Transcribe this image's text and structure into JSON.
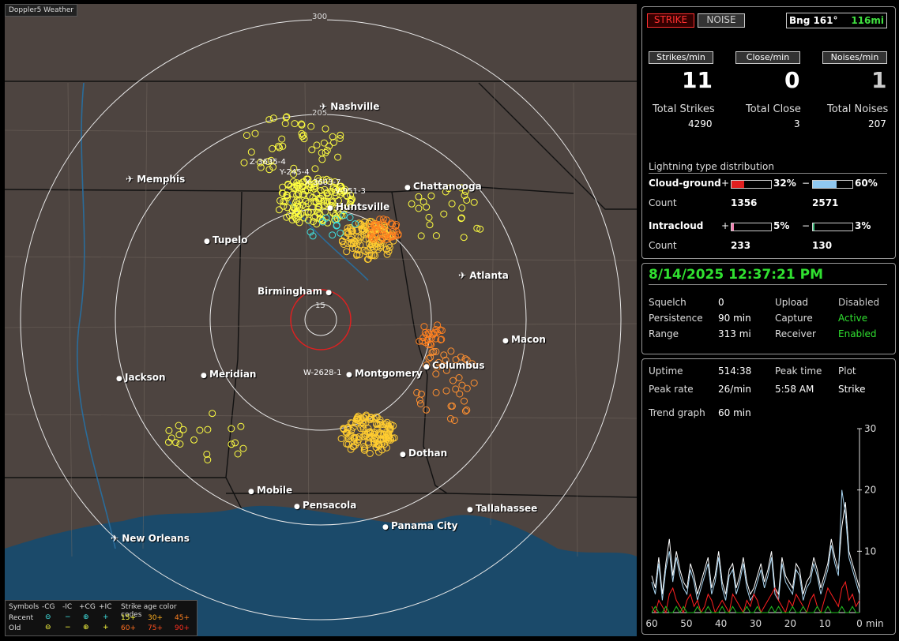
{
  "app_title": "Doppler5 Weather",
  "map": {
    "range_labels": [
      "300",
      "205",
      "15"
    ],
    "cities": [
      {
        "name": "Nashville",
        "kind": "plane"
      },
      {
        "name": "Memphis",
        "kind": "plane"
      },
      {
        "name": "Chattanooga",
        "kind": "dot"
      },
      {
        "name": "Huntsville",
        "kind": "dot"
      },
      {
        "name": "Tupelo",
        "kind": "dot"
      },
      {
        "name": "Atlanta",
        "kind": "plane"
      },
      {
        "name": "Birmingham",
        "kind": "dot"
      },
      {
        "name": "Macon",
        "kind": "dot"
      },
      {
        "name": "Jackson",
        "kind": "dot"
      },
      {
        "name": "Meridian",
        "kind": "dot"
      },
      {
        "name": "Montgomery",
        "kind": "dot"
      },
      {
        "name": "Columbus",
        "kind": "dot"
      },
      {
        "name": "Dothan",
        "kind": "dot"
      },
      {
        "name": "Mobile",
        "kind": "dot"
      },
      {
        "name": "Pensacola",
        "kind": "dot"
      },
      {
        "name": "Tallahassee",
        "kind": "dot"
      },
      {
        "name": "Panama City",
        "kind": "dot"
      },
      {
        "name": "New Orleans",
        "kind": "plane"
      }
    ],
    "storm_tags": [
      "Z-3635-4",
      "Y-245-4",
      "X-3603-7",
      "V-951-3",
      "W-2628-1"
    ],
    "legend": {
      "symbols_label": "Symbols",
      "headers": [
        "-CG",
        "-IC",
        "+CG",
        "+IC"
      ],
      "age_title": "Strike age color codes",
      "recent_label": "Recent",
      "old_label": "Old",
      "recent_ages": [
        "15+",
        "30+",
        "45+"
      ],
      "old_ages": [
        "60+",
        "75+",
        "90+"
      ]
    }
  },
  "counts_panel": {
    "strike_btn": "STRIKE",
    "noise_btn": "NOISE",
    "bearing": "Bng 161°",
    "distance": "116mi",
    "strikes_per_min_label": "Strikes/min",
    "close_per_min_label": "Close/min",
    "noises_per_min_label": "Noises/min",
    "strikes_per_min": "11",
    "close_per_min": "0",
    "noises_per_min": "1",
    "total_strikes_label": "Total Strikes",
    "total_close_label": "Total Close",
    "total_noises_label": "Total Noises",
    "total_strikes": "4290",
    "total_close": "3",
    "total_noises": "207",
    "dist_title": "Lightning type distribution",
    "cg_label": "Cloud-ground",
    "ic_label": "Intracloud",
    "count_label": "Count",
    "plus": "+",
    "minus": "−",
    "cg_pos_pct": "32%",
    "cg_neg_pct": "60%",
    "ic_pos_pct": "5%",
    "ic_neg_pct": "3%",
    "cg_pos_count": "1356",
    "cg_neg_count": "2571",
    "ic_pos_count": "233",
    "ic_neg_count": "130",
    "cg_pos_frac": 0.32,
    "cg_neg_frac": 0.6,
    "ic_pos_frac": 0.05,
    "ic_neg_frac": 0.03
  },
  "status_panel": {
    "datetime": "8/14/2025 12:37:21 PM",
    "squelch_label": "Squelch",
    "squelch": "0",
    "persistence_label": "Persistence",
    "persistence": "90 min",
    "range_label": "Range",
    "range": "313 mi",
    "upload_label": "Upload",
    "upload": "Disabled",
    "capture_label": "Capture",
    "capture": "Active",
    "receiver_label": "Receiver",
    "receiver": "Enabled"
  },
  "trend_panel": {
    "uptime_label": "Uptime",
    "uptime": "514:38",
    "peak_time_label": "Peak time",
    "peak_time": "5:58 AM",
    "plot_label": "Plot",
    "plot": "Strike",
    "peak_rate_label": "Peak rate",
    "peak_rate": "26/min",
    "trend_label": "Trend graph",
    "trend": "60 min",
    "x_unit": "min"
  },
  "chart_data": {
    "type": "line",
    "title": "",
    "xlabel": "min",
    "ylabel": "",
    "x_ticks": [
      60,
      50,
      40,
      30,
      20,
      10,
      0
    ],
    "y_ticks": [
      10,
      20,
      30
    ],
    "xlim": [
      60,
      0
    ],
    "ylim": [
      0,
      30
    ],
    "series": [
      {
        "color": "#ffffff",
        "values": [
          6,
          4,
          9,
          3,
          8,
          12,
          6,
          10,
          7,
          5,
          4,
          8,
          6,
          3,
          5,
          7,
          9,
          4,
          6,
          10,
          5,
          3,
          7,
          8,
          4,
          6,
          9,
          5,
          3,
          4,
          6,
          8,
          5,
          7,
          10,
          4,
          3,
          9,
          6,
          5,
          4,
          8,
          7,
          3,
          5,
          6,
          9,
          7,
          4,
          6,
          8,
          12,
          9,
          7,
          14,
          18,
          10,
          8,
          6,
          4
        ]
      },
      {
        "color": "#a8d4f0",
        "values": [
          5,
          3,
          8,
          2,
          7,
          10,
          5,
          9,
          6,
          4,
          3,
          7,
          5,
          2,
          4,
          6,
          8,
          3,
          5,
          9,
          4,
          2,
          6,
          7,
          3,
          5,
          8,
          4,
          2,
          3,
          5,
          7,
          4,
          6,
          9,
          3,
          2,
          8,
          5,
          4,
          3,
          7,
          6,
          2,
          4,
          5,
          8,
          6,
          3,
          5,
          7,
          11,
          8,
          6,
          20,
          16,
          9,
          7,
          5,
          3
        ]
      },
      {
        "color": "#ff2020",
        "values": [
          1,
          0,
          2,
          1,
          0,
          3,
          4,
          2,
          1,
          0,
          2,
          3,
          1,
          2,
          0,
          1,
          3,
          2,
          0,
          1,
          2,
          1,
          0,
          3,
          2,
          1,
          0,
          2,
          1,
          3,
          2,
          0,
          1,
          2,
          3,
          4,
          2,
          1,
          0,
          2,
          1,
          3,
          2,
          1,
          0,
          2,
          3,
          1,
          0,
          2,
          4,
          3,
          2,
          1,
          4,
          5,
          2,
          3,
          1,
          2
        ]
      },
      {
        "color": "#20c020",
        "values": [
          0,
          1,
          0,
          0,
          1,
          0,
          0,
          1,
          0,
          1,
          0,
          0,
          0,
          1,
          0,
          0,
          1,
          0,
          0,
          0,
          1,
          0,
          0,
          1,
          0,
          0,
          0,
          1,
          0,
          0,
          1,
          0,
          0,
          0,
          1,
          0,
          1,
          0,
          0,
          0,
          1,
          0,
          0,
          1,
          0,
          0,
          0,
          1,
          0,
          0,
          1,
          0,
          0,
          0,
          1,
          0,
          0,
          1,
          0,
          0
        ]
      }
    ]
  }
}
